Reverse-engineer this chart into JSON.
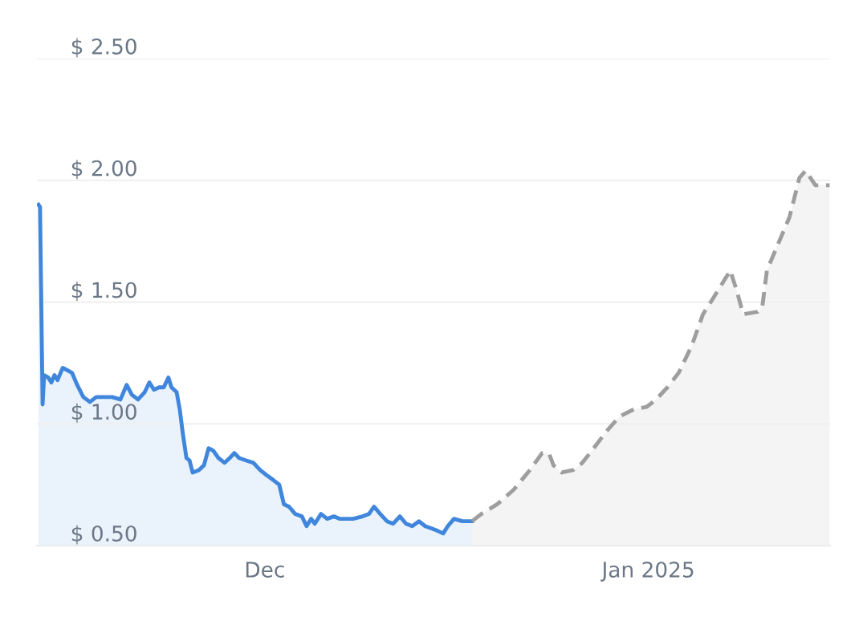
{
  "chart_data": {
    "type": "area",
    "xlim": [
      "2024-11-12T14:00",
      "2025-01-15T16:00"
    ],
    "ylim": [
      0.5,
      2.5
    ],
    "xticks": [
      {
        "value": "2024-12-01",
        "label": "Dec"
      },
      {
        "value": "2025-01-01",
        "label": "Jan 2025"
      }
    ],
    "yticks": [
      {
        "value": 0.5,
        "label": "$ 0.50"
      },
      {
        "value": 1.0,
        "label": "$ 1.00"
      },
      {
        "value": 1.5,
        "label": "$ 1.50"
      },
      {
        "value": 2.0,
        "label": "$ 2.00"
      },
      {
        "value": 2.5,
        "label": "$ 2.50"
      }
    ],
    "grid": "y",
    "series": [
      {
        "color": "#3f86dc",
        "line_style": "solid",
        "x": [
          "2024-11-12T17:00",
          "2024-11-12T20:00",
          "2024-11-13T01:00",
          "2024-11-13T04:00",
          "2024-11-13T12:00",
          "2024-11-13T18:00",
          "2024-11-14T00:00",
          "2024-11-14T06:00",
          "2024-11-14T16:00",
          "2024-11-15T01:00",
          "2024-11-15T10:00",
          "2024-11-15T20:00",
          "2024-11-16T08:00",
          "2024-11-16T21:00",
          "2024-11-17T09:00",
          "2024-11-17T22:00",
          "2024-11-18T16:00",
          "2024-11-19T08:00",
          "2024-11-19T20:00",
          "2024-11-20T06:00",
          "2024-11-20T18:00",
          "2024-11-21T07:00",
          "2024-11-21T16:00",
          "2024-11-22T01:00",
          "2024-11-22T11:00",
          "2024-11-22T20:00",
          "2024-11-23T05:00",
          "2024-11-23T11:00",
          "2024-11-23T21:00",
          "2024-11-24T03:00",
          "2024-11-24T09:00",
          "2024-11-24T16:00",
          "2024-11-24T22:00",
          "2024-11-25T04:00",
          "2024-11-25T16:00",
          "2024-11-26T02:00",
          "2024-11-26T11:00",
          "2024-11-26T20:00",
          "2024-11-27T06:00",
          "2024-11-27T18:00",
          "2024-11-28T04:00",
          "2024-11-28T13:00",
          "2024-11-28T22:00",
          "2024-11-29T11:00",
          "2024-11-30T02:00",
          "2024-11-30T15:00",
          "2024-12-01T03:00",
          "2024-12-01T16:00",
          "2024-12-02T04:00",
          "2024-12-02T13:00",
          "2024-12-02T23:00",
          "2024-12-03T11:00",
          "2024-12-04T00:00",
          "2024-12-04T09:00",
          "2024-12-04T18:00",
          "2024-12-05T01:00",
          "2024-12-05T13:00",
          "2024-12-06T01:00",
          "2024-12-06T14:00",
          "2024-12-07T02:00",
          "2024-12-07T15:00",
          "2024-12-08T03:00",
          "2024-12-08T22:00",
          "2024-12-09T10:00",
          "2024-12-09T20:00",
          "2024-12-10T08:00",
          "2024-12-10T21:00",
          "2024-12-11T09:00",
          "2024-12-11T22:00",
          "2024-12-12T10:00",
          "2024-12-12T22:00",
          "2024-12-13T11:00",
          "2024-12-13T23:00",
          "2024-12-14T12:00",
          "2024-12-15T00:00",
          "2024-12-15T10:00",
          "2024-12-15T19:00",
          "2024-12-16T07:00",
          "2024-12-16T23:00",
          "2024-12-17T18:00"
        ],
        "values": [
          1.9,
          1.89,
          1.08,
          1.2,
          1.19,
          1.17,
          1.2,
          1.18,
          1.23,
          1.22,
          1.21,
          1.16,
          1.11,
          1.09,
          1.11,
          1.11,
          1.11,
          1.1,
          1.16,
          1.12,
          1.1,
          1.13,
          1.17,
          1.14,
          1.15,
          1.15,
          1.19,
          1.15,
          1.13,
          1.06,
          0.96,
          0.86,
          0.85,
          0.8,
          0.81,
          0.83,
          0.9,
          0.89,
          0.86,
          0.84,
          0.86,
          0.88,
          0.86,
          0.85,
          0.84,
          0.81,
          0.79,
          0.77,
          0.75,
          0.67,
          0.66,
          0.63,
          0.62,
          0.58,
          0.61,
          0.59,
          0.63,
          0.61,
          0.62,
          0.61,
          0.61,
          0.61,
          0.62,
          0.63,
          0.66,
          0.63,
          0.6,
          0.59,
          0.62,
          0.59,
          0.58,
          0.6,
          0.58,
          0.57,
          0.56,
          0.55,
          0.58,
          0.61,
          0.6,
          0.6
        ]
      },
      {
        "color": "#9e9e9e",
        "line_style": "dashed",
        "x": [
          "2024-12-17T18:00",
          "2024-12-18T12:00",
          "2024-12-19T19:00",
          "2024-12-21T03:00",
          "2024-12-22T10:00",
          "2024-12-23T10:00",
          "2024-12-23T23:00",
          "2024-12-24T08:00",
          "2024-12-25T00:00",
          "2024-12-25T22:00",
          "2024-12-26T16:00",
          "2024-12-27T14:00",
          "2024-12-28T15:00",
          "2024-12-29T16:00",
          "2024-12-30T20:00",
          "2024-12-31T21:00",
          "2025-01-01T15:00",
          "2025-01-02T13:00",
          "2025-01-03T11:00",
          "2025-01-04T12:00",
          "2025-01-05T10:00",
          "2025-01-06T04:00",
          "2025-01-07T15:00",
          "2025-01-08T03:00",
          "2025-01-08T16:00",
          "2025-01-09T20:00",
          "2025-01-10T05:00",
          "2025-01-10T14:00",
          "2025-01-11T12:00",
          "2025-01-12T10:00",
          "2025-01-13T05:00",
          "2025-01-13T17:00",
          "2025-01-14T12:00",
          "2025-01-15T16:00"
        ],
        "values": [
          0.6,
          0.63,
          0.67,
          0.73,
          0.81,
          0.88,
          0.88,
          0.83,
          0.8,
          0.81,
          0.84,
          0.9,
          0.97,
          1.03,
          1.06,
          1.07,
          1.1,
          1.15,
          1.21,
          1.32,
          1.45,
          1.51,
          1.63,
          1.55,
          1.45,
          1.46,
          1.48,
          1.63,
          1.74,
          1.85,
          2.01,
          2.04,
          1.98,
          1.98
        ]
      }
    ]
  }
}
